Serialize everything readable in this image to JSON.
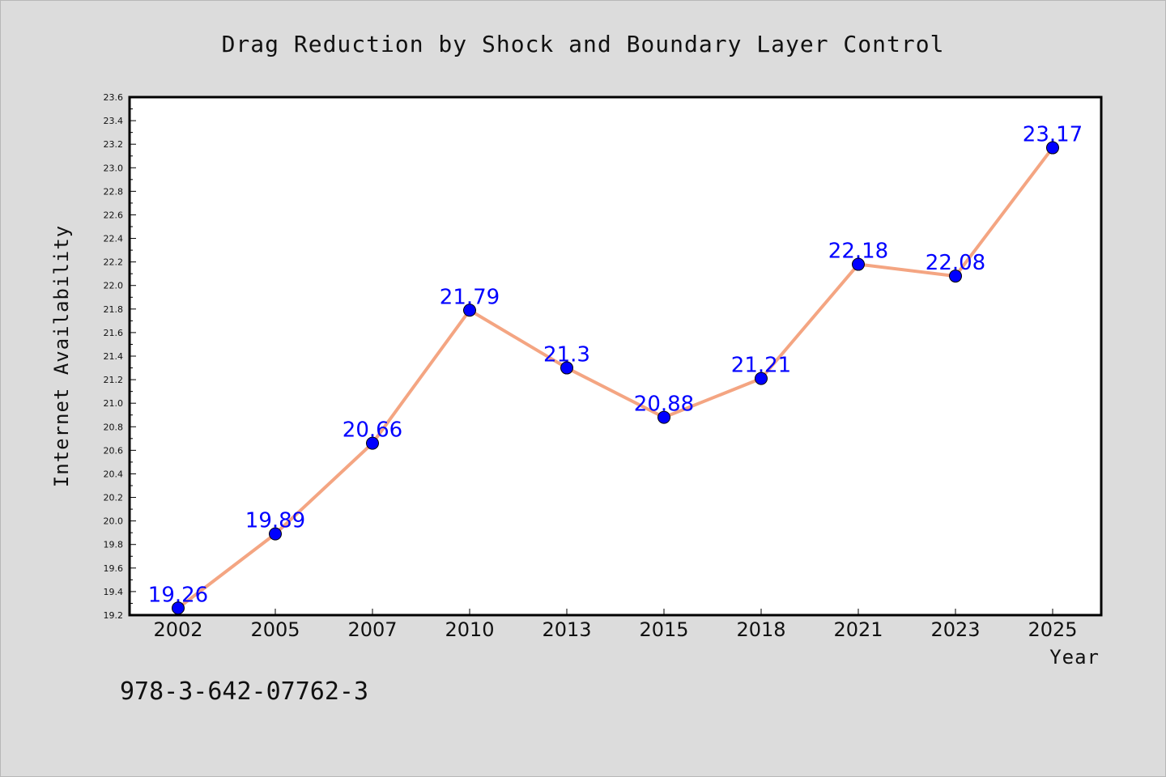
{
  "chart_data": {
    "type": "line",
    "title": "Drag Reduction by Shock and Boundary Layer Control",
    "xlabel": "Year",
    "ylabel": "Internet Availability",
    "categories": [
      "2002",
      "2005",
      "2007",
      "2010",
      "2013",
      "2015",
      "2018",
      "2021",
      "2023",
      "2025"
    ],
    "values": [
      19.26,
      19.89,
      20.66,
      21.79,
      21.3,
      20.88,
      21.21,
      22.18,
      22.08,
      23.17
    ],
    "data_labels": [
      "19.26",
      "19.89",
      "20.66",
      "21.79",
      "21.3",
      "20.88",
      "21.21",
      "22.18",
      "22.08",
      "23.17"
    ],
    "ylim": [
      19.2,
      23.6
    ],
    "yticks": [
      "19.2",
      "19.4",
      "19.6",
      "19.8",
      "20.0",
      "20.2",
      "20.4",
      "20.6",
      "20.8",
      "21.0",
      "21.2",
      "21.4",
      "21.6",
      "21.8",
      "22.0",
      "22.2",
      "22.4",
      "22.6",
      "22.8",
      "23.0",
      "23.2",
      "23.4",
      "23.6"
    ],
    "grid": false,
    "legend": "none",
    "line_color": "#f4a582",
    "marker_color": "#0000ff",
    "label_color": "#0000ff"
  },
  "annotation": "978-3-642-07762-3"
}
